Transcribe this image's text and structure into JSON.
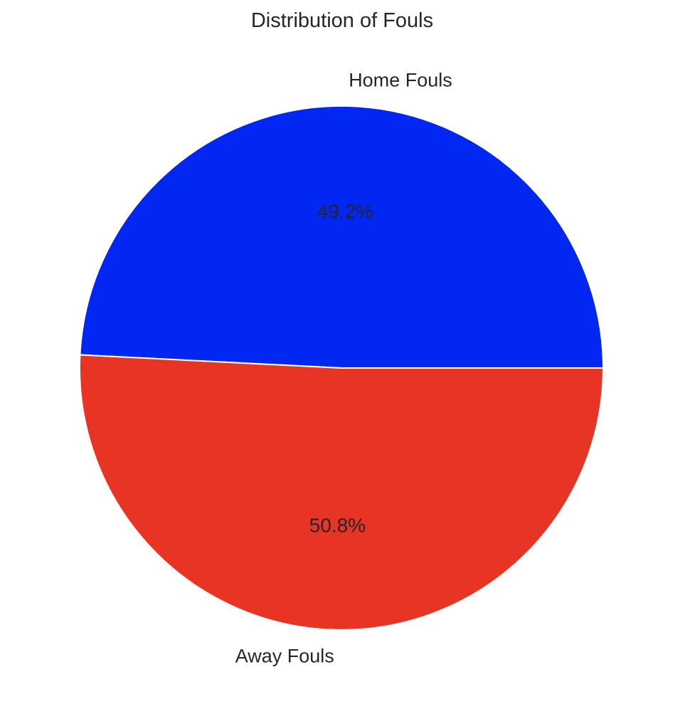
{
  "chart_data": {
    "type": "pie",
    "title": "Distribution of Fouls",
    "categories": [
      "Home Fouls",
      "Away Fouls"
    ],
    "values": [
      49.2,
      50.8
    ],
    "percent_labels": [
      "49.2%",
      "50.8%"
    ],
    "colors": [
      "#0327f2",
      "#e83424"
    ],
    "start_angle_deg": 0,
    "direction": "counterclockwise",
    "edge_color": "#ffffff",
    "legend": "none"
  }
}
